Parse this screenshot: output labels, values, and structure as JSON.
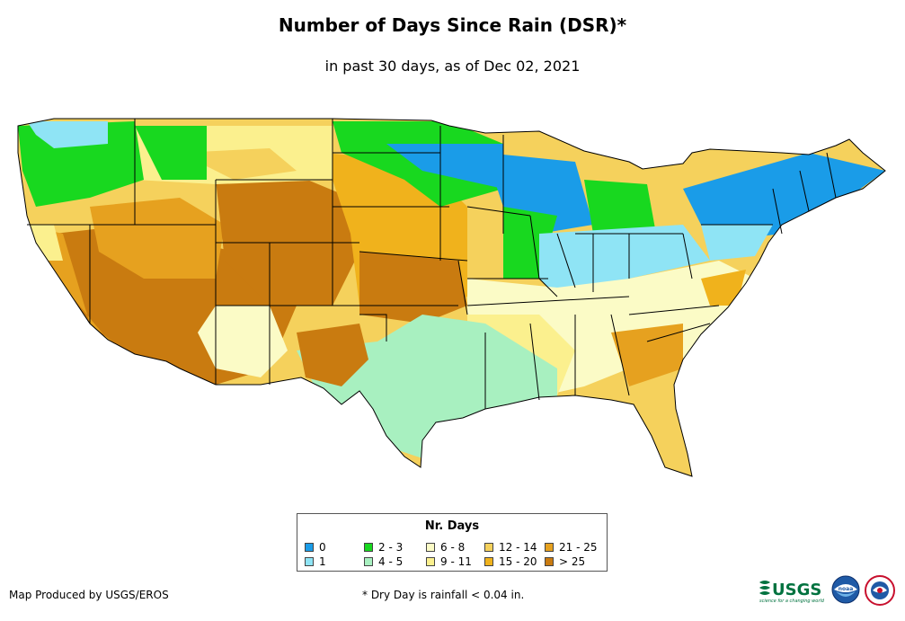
{
  "title": "Number of Days Since Rain (DSR)*",
  "subtitle": "in past 30 days, as of Dec 02, 2021",
  "legend": {
    "title": "Nr. Days",
    "items": [
      {
        "label": "0",
        "color": "#1a9ce8"
      },
      {
        "label": "1",
        "color": "#8fe4f5"
      },
      {
        "label": "2 - 3",
        "color": "#18d81f"
      },
      {
        "label": "4 - 5",
        "color": "#a8f0c0"
      },
      {
        "label": "6 - 8",
        "color": "#fbfbc6"
      },
      {
        "label": "9 - 11",
        "color": "#fbf08e"
      },
      {
        "label": "12 - 14",
        "color": "#f5d15c"
      },
      {
        "label": "15 - 20",
        "color": "#f0b21c"
      },
      {
        "label": "21 - 25",
        "color": "#e6a11f"
      },
      {
        "label": "> 25",
        "color": "#c97b10"
      }
    ]
  },
  "footer": {
    "credit": "Map Produced by USGS/EROS",
    "note": "* Dry Day is rainfall < 0.04 in."
  },
  "logos": {
    "usgs_text": "USGS",
    "usgs_tagline": "science for a changing world",
    "noaa_text": "noaa"
  }
}
